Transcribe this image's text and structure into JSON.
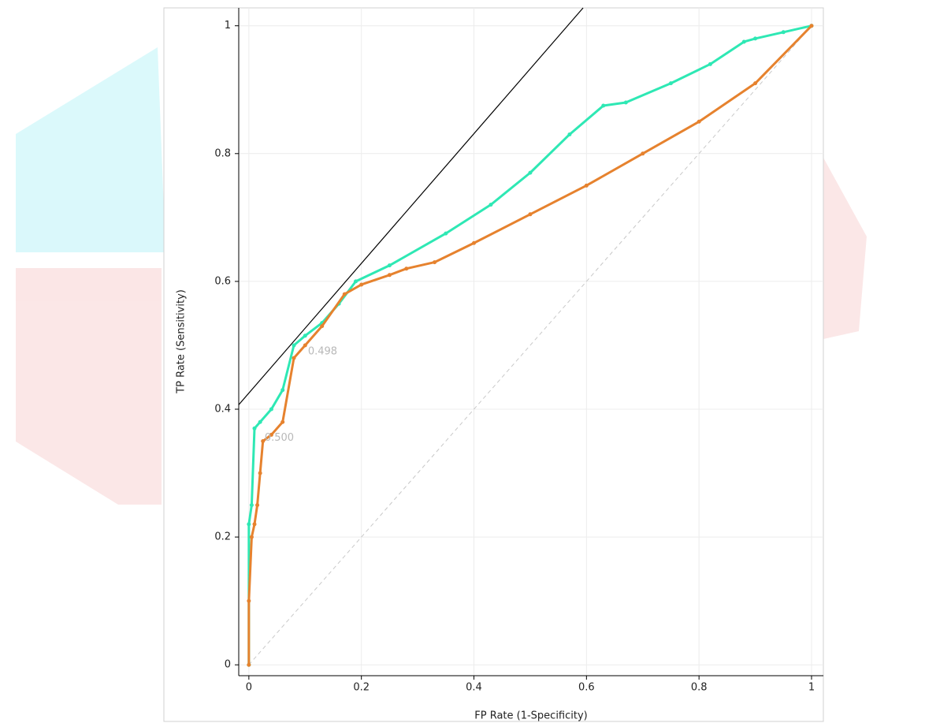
{
  "chart_data": {
    "type": "line",
    "x_label": "FP Rate (1-Specificity)",
    "y_label": "TP Rate (Sensitivity)",
    "xlim": [
      -0.018,
      1.021
    ],
    "ylim": [
      -0.017,
      1.028
    ],
    "xticks": [
      0,
      0.2,
      0.4,
      0.6,
      0.8,
      1
    ],
    "yticks": [
      0,
      0.2,
      0.4,
      0.6,
      0.8,
      1
    ],
    "grid": true,
    "series": [
      {
        "color": "#2ee8b4",
        "x": [
          0,
          0,
          0.005,
          0.01,
          0.02,
          0.04,
          0.06,
          0.08,
          0.1,
          0.13,
          0.16,
          0.19,
          0.25,
          0.35,
          0.43,
          0.5,
          0.57,
          0.63,
          0.67,
          0.75,
          0.82,
          0.88,
          0.9,
          0.95,
          1
        ],
        "values": [
          0,
          0.22,
          0.25,
          0.37,
          0.38,
          0.4,
          0.43,
          0.5,
          0.515,
          0.535,
          0.565,
          0.6,
          0.625,
          0.675,
          0.72,
          0.77,
          0.83,
          0.875,
          0.88,
          0.91,
          0.94,
          0.975,
          0.98,
          0.99,
          1
        ]
      },
      {
        "color": "#e6822e",
        "x": [
          0,
          0,
          0.005,
          0.01,
          0.015,
          0.02,
          0.025,
          0.04,
          0.06,
          0.08,
          0.1,
          0.13,
          0.17,
          0.2,
          0.25,
          0.28,
          0.33,
          0.4,
          0.5,
          0.6,
          0.7,
          0.8,
          0.9,
          1
        ],
        "values": [
          0,
          0.1,
          0.2,
          0.22,
          0.25,
          0.3,
          0.35,
          0.36,
          0.38,
          0.48,
          0.5,
          0.53,
          0.58,
          0.595,
          0.61,
          0.62,
          0.63,
          0.66,
          0.705,
          0.75,
          0.8,
          0.85,
          0.91,
          1
        ]
      }
    ],
    "tangent": {
      "color": "#000000",
      "x": [
        -0.018,
        0.594
      ],
      "values": [
        0.407,
        1.028
      ]
    },
    "diagonal": {
      "color": "#c8c8c8",
      "x": [
        0,
        1
      ],
      "values": [
        0,
        1
      ]
    },
    "annotations": [
      {
        "text": "0.498",
        "x": 0.105,
        "y": 0.49
      },
      {
        "text": "0.500",
        "x": 0.028,
        "y": 0.355
      }
    ]
  }
}
